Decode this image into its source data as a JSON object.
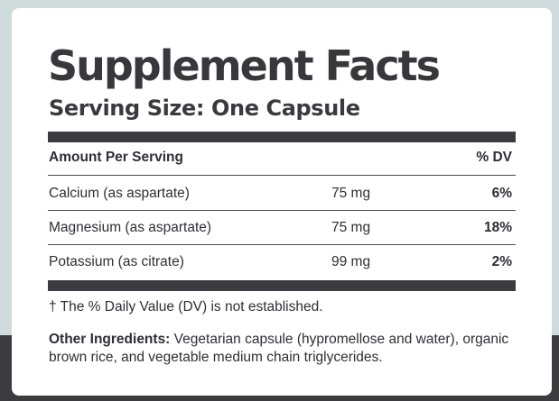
{
  "title": "Supplement Facts",
  "serving_size": "Serving Size: One Capsule",
  "table": {
    "header": {
      "amount_per_serving": "Amount Per Serving",
      "daily_value": "% DV"
    },
    "rows": [
      {
        "nutrient": "Calcium (as aspartate)",
        "amount": "75 mg",
        "dv": "6%"
      },
      {
        "nutrient": "Magnesium (as aspartate)",
        "amount": "75 mg",
        "dv": "18%"
      },
      {
        "nutrient": "Potassium (as citrate)",
        "amount": "99 mg",
        "dv": "2%"
      }
    ]
  },
  "footnote": "† The % Daily Value (DV) is not established.",
  "other_ingredients": {
    "label": "Other Ingredients:",
    "text": "Vegetarian capsule (hypromellose and water), organic brown rice, and vegetable medium chain triglycerides."
  },
  "colors": {
    "background": "#cfdadd",
    "band": "#3c3b40",
    "panel": "#ffffff",
    "text": "#38373c"
  }
}
